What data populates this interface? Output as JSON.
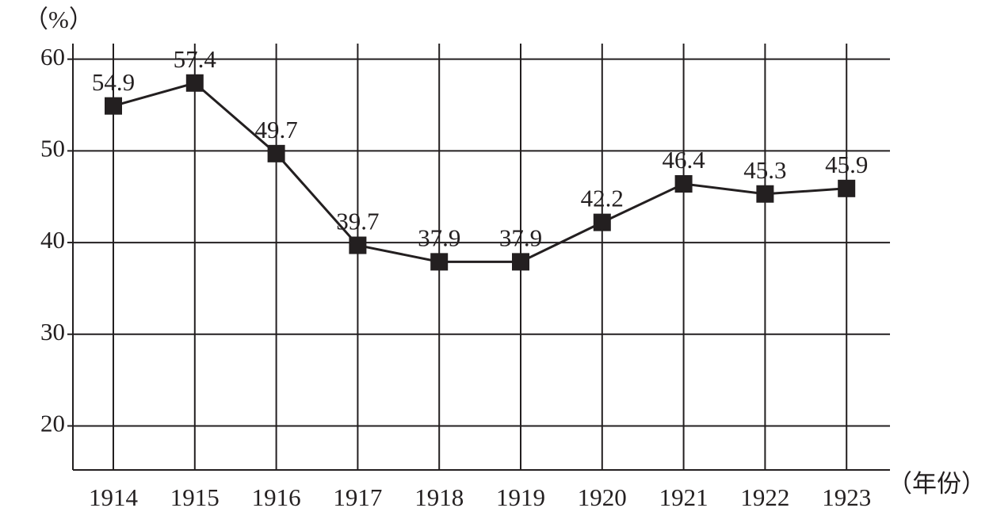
{
  "chart_data": {
    "type": "line",
    "y_label": "（%）",
    "x_label": "（年份）",
    "categories": [
      "1914",
      "1915",
      "1916",
      "1917",
      "1918",
      "1919",
      "1920",
      "1921",
      "1922",
      "1923"
    ],
    "values": [
      54.9,
      57.4,
      49.7,
      39.7,
      37.9,
      37.9,
      42.2,
      46.4,
      45.3,
      45.9
    ],
    "color": "#231f20",
    "ylim": [
      15.2,
      61.7
    ],
    "yticks": [
      20,
      30,
      40,
      50,
      60
    ],
    "grid": true
  }
}
